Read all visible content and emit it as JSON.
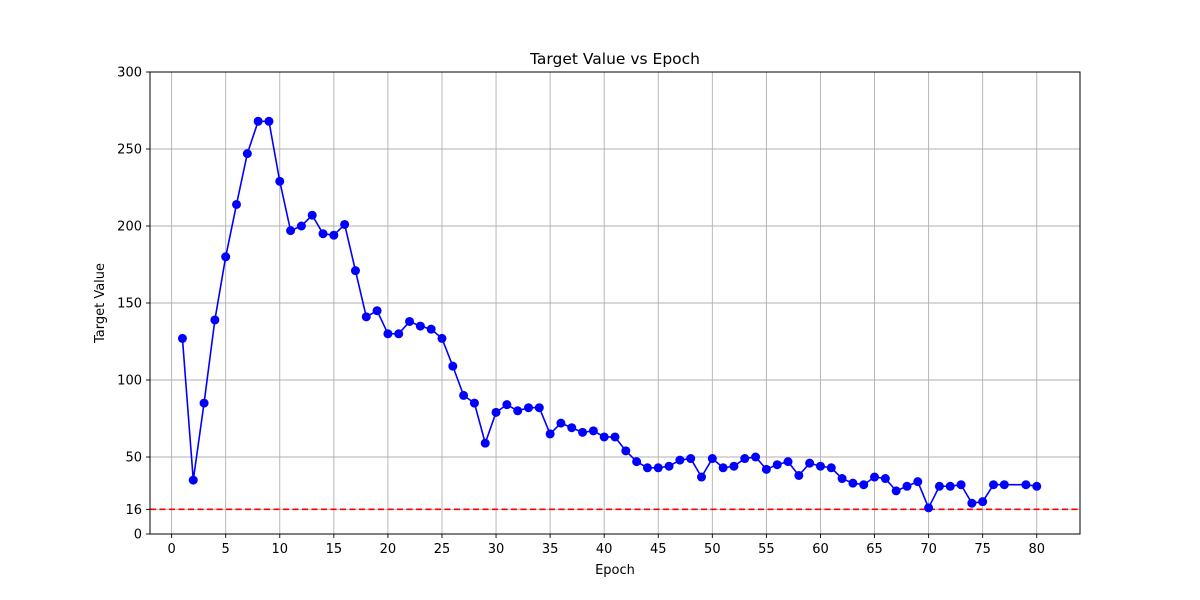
{
  "chart_data": {
    "type": "line",
    "title": "Target Value vs Epoch",
    "xlabel": "Epoch",
    "ylabel": "Target Value",
    "xlim": [
      -2,
      84
    ],
    "ylim": [
      0,
      300
    ],
    "xticks": [
      0,
      5,
      10,
      15,
      20,
      25,
      30,
      35,
      40,
      45,
      50,
      55,
      60,
      65,
      70,
      75,
      80
    ],
    "yticks": [
      0,
      16,
      50,
      100,
      150,
      200,
      250,
      300
    ],
    "grid": true,
    "series": [
      {
        "color": "#0000ff",
        "marker": "circle",
        "x": [
          1,
          2,
          3,
          4,
          5,
          6,
          7,
          8,
          9,
          10,
          11,
          12,
          13,
          14,
          15,
          16,
          17,
          18,
          19,
          20,
          21,
          22,
          23,
          24,
          25,
          26,
          27,
          28,
          29,
          30,
          31,
          32,
          33,
          34,
          35,
          36,
          37,
          38,
          39,
          40,
          41,
          42,
          43,
          44,
          45,
          46,
          47,
          48,
          49,
          50,
          51,
          52,
          53,
          54,
          55,
          56,
          57,
          58,
          59,
          60,
          61,
          62,
          63,
          64,
          65,
          66,
          67,
          68,
          69,
          70,
          71,
          72,
          73,
          74,
          75,
          76,
          77,
          79,
          80
        ],
        "y": [
          127,
          35,
          85,
          139,
          180,
          214,
          247,
          268,
          268,
          229,
          197,
          200,
          207,
          195,
          194,
          201,
          171,
          141,
          145,
          130,
          130,
          138,
          135,
          133,
          127,
          109,
          90,
          85,
          59,
          79,
          84,
          80,
          82,
          82,
          65,
          72,
          69,
          66,
          67,
          63,
          63,
          54,
          47,
          43,
          43,
          44,
          48,
          49,
          37,
          49,
          43,
          44,
          49,
          50,
          42,
          45,
          47,
          38,
          46,
          44,
          43,
          36,
          33,
          32,
          37,
          36,
          28,
          31,
          34,
          17,
          31,
          31,
          32,
          20,
          21,
          32,
          32,
          32,
          31
        ]
      }
    ],
    "reference_line": {
      "y": 16,
      "color": "#ff0000",
      "style": "dashed"
    }
  }
}
